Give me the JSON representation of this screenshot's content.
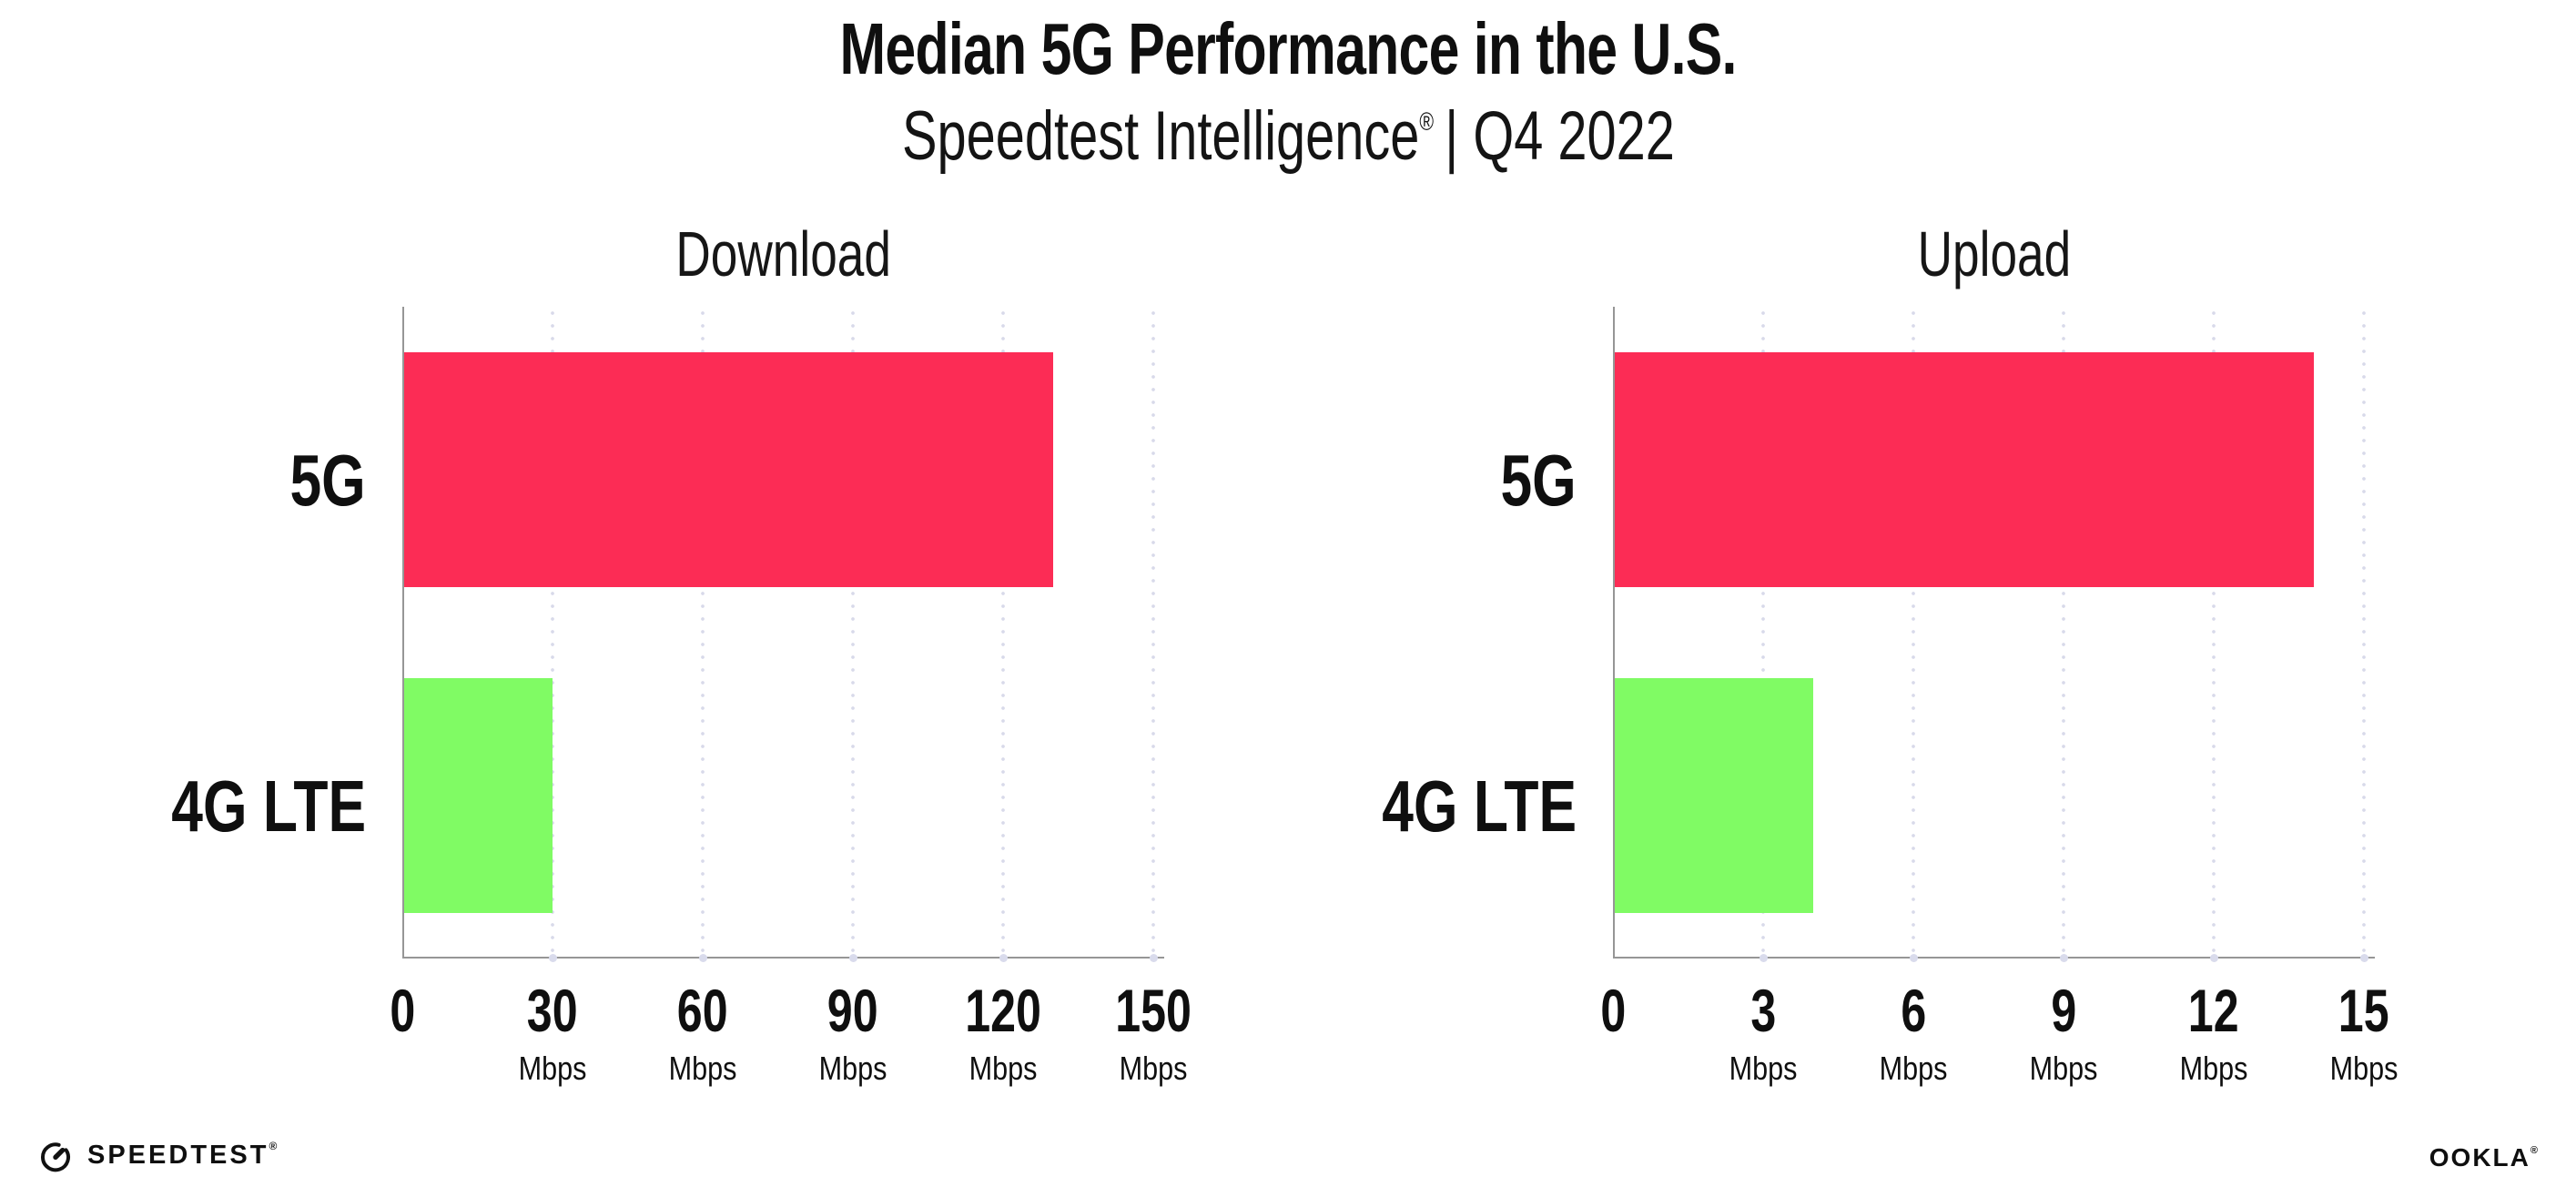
{
  "header": {
    "title": "Median 5G Performance in the U.S.",
    "subtitle_brand": "Speedtest Intelligence",
    "subtitle_reg": "®",
    "subtitle_rest": "| Q4 2022"
  },
  "chart_data": [
    {
      "type": "bar",
      "orientation": "horizontal",
      "title": "Download",
      "categories": [
        "5G",
        "4G LTE"
      ],
      "values": [
        130,
        30
      ],
      "unit": "Mbps",
      "xticks": [
        0,
        30,
        60,
        90,
        120,
        150
      ],
      "xlim": [
        0,
        152
      ],
      "grid": "vertical-dotted",
      "legend": "none",
      "bar_colors": [
        "#fc2c55",
        "#80fb64"
      ]
    },
    {
      "type": "bar",
      "orientation": "horizontal",
      "title": "Upload",
      "categories": [
        "5G",
        "4G LTE"
      ],
      "values": [
        14,
        4
      ],
      "unit": "Mbps",
      "xticks": [
        0,
        3,
        6,
        9,
        12,
        15
      ],
      "xlim": [
        0,
        15.2
      ],
      "grid": "vertical-dotted",
      "legend": "none",
      "bar_colors": [
        "#fc2c55",
        "#80fb64"
      ]
    }
  ],
  "footer": {
    "speedtest_logo_text": "SPEEDTEST",
    "speedtest_reg": "®",
    "ookla_logo_text": "OOKLA",
    "ookla_reg": "®"
  },
  "colors": {
    "bar_5g": "#fc2c55",
    "bar_4g_lte": "#80fb64",
    "axis": "#969696",
    "gridline": "#d8daea",
    "text": "#0f0f0f"
  }
}
